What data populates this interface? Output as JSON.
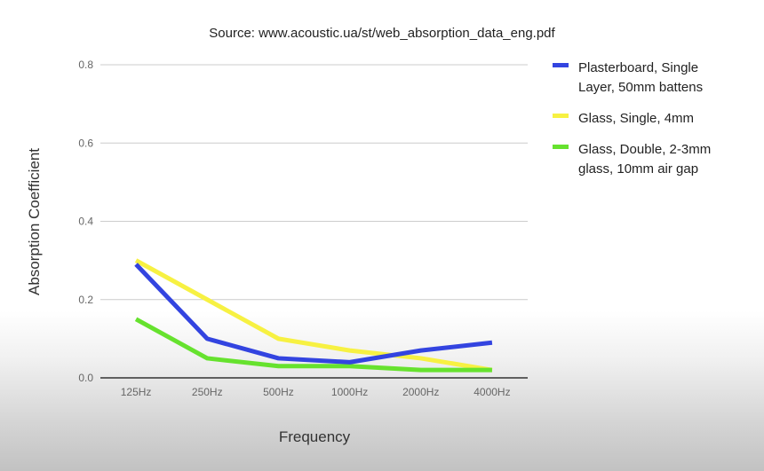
{
  "chart_data": {
    "type": "line",
    "subtitle": "Source: www.acoustic.ua/st/web_absorption_data_eng.pdf",
    "xlabel": "Frequency",
    "ylabel": "Absorption Coefficient",
    "categories": [
      "125Hz",
      "250Hz",
      "500Hz",
      "1000Hz",
      "2000Hz",
      "4000Hz"
    ],
    "ylim": [
      0,
      0.8
    ],
    "yticks": [
      "0.0",
      "0.2",
      "0.4",
      "0.6",
      "0.8"
    ],
    "grid": true,
    "legend_position": "right",
    "series": [
      {
        "name": "Plasterboard, Single Layer, 50mm battens",
        "legend_lines": [
          "Plasterboard, Single",
          "Layer, 50mm battens"
        ],
        "color": "#3344e0",
        "values": [
          0.29,
          0.1,
          0.05,
          0.04,
          0.07,
          0.09
        ]
      },
      {
        "name": "Glass, Single, 4mm",
        "legend_lines": [
          "Glass, Single, 4mm"
        ],
        "color": "#f7f142",
        "values": [
          0.3,
          0.2,
          0.1,
          0.07,
          0.05,
          0.02
        ]
      },
      {
        "name": "Glass, Double, 2-3mm glass, 10mm air gap",
        "legend_lines": [
          "Glass, Double, 2-3mm",
          "glass, 10mm air gap"
        ],
        "color": "#66e22e",
        "values": [
          0.15,
          0.05,
          0.03,
          0.03,
          0.02,
          0.02
        ]
      }
    ]
  }
}
